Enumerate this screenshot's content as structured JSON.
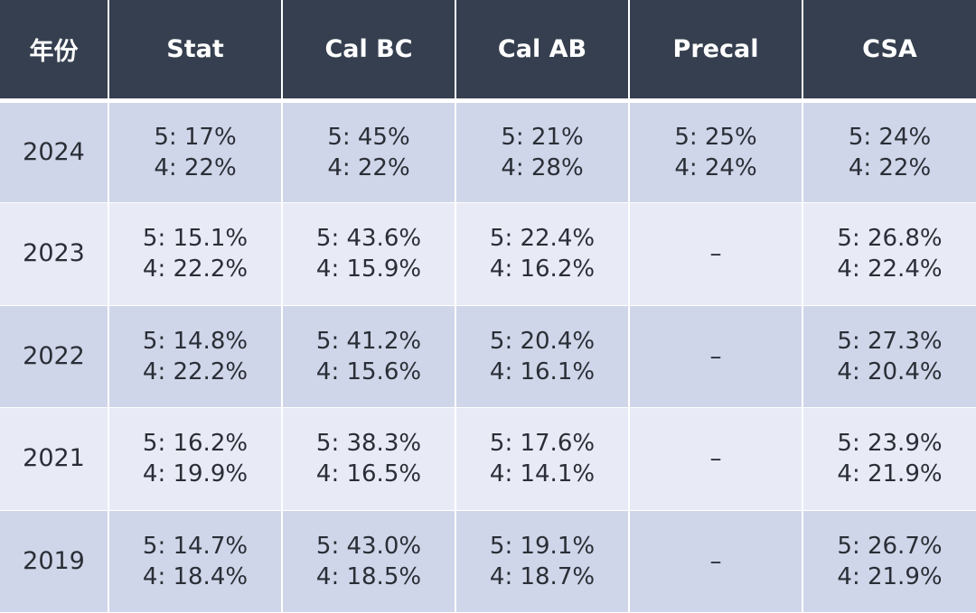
{
  "table": {
    "headers": [
      "年份",
      "Stat",
      "Cal BC",
      "Cal AB",
      "Precal",
      "CSA"
    ],
    "rows": [
      {
        "year": "2024",
        "cells": [
          [
            "5: 17%",
            "4: 22%"
          ],
          [
            "5: 45%",
            "4: 22%"
          ],
          [
            "5: 21%",
            "4: 28%"
          ],
          [
            "5: 25%",
            "4: 24%"
          ],
          [
            "5: 24%",
            "4: 22%"
          ]
        ]
      },
      {
        "year": "2023",
        "cells": [
          [
            "5: 15.1%",
            "4: 22.2%"
          ],
          [
            "5: 43.6%",
            "4: 15.9%"
          ],
          [
            "5: 22.4%",
            "4: 16.2%"
          ],
          [
            "–"
          ],
          [
            "5: 26.8%",
            "4: 22.4%"
          ]
        ]
      },
      {
        "year": "2022",
        "cells": [
          [
            "5: 14.8%",
            "4: 22.2%"
          ],
          [
            "5: 41.2%",
            "4: 15.6%"
          ],
          [
            "5: 20.4%",
            "4: 16.1%"
          ],
          [
            "–"
          ],
          [
            "5: 27.3%",
            "4: 20.4%"
          ]
        ]
      },
      {
        "year": "2021",
        "cells": [
          [
            "5: 16.2%",
            "4: 19.9%"
          ],
          [
            "5: 38.3%",
            "4: 16.5%"
          ],
          [
            "5: 17.6%",
            "4: 14.1%"
          ],
          [
            "–"
          ],
          [
            "5: 23.9%",
            "4: 21.9%"
          ]
        ]
      },
      {
        "year": "2019",
        "cells": [
          [
            "5: 14.7%",
            "4: 18.4%"
          ],
          [
            "5: 43.0%",
            "4: 18.5%"
          ],
          [
            "5: 19.1%",
            "4: 18.7%"
          ],
          [
            "–"
          ],
          [
            "5: 26.7%",
            "4: 21.9%"
          ]
        ]
      }
    ]
  },
  "colors": {
    "header_bg": "#353f4f",
    "row_dark": "#d0d6e9",
    "row_light": "#e8ebf5"
  }
}
